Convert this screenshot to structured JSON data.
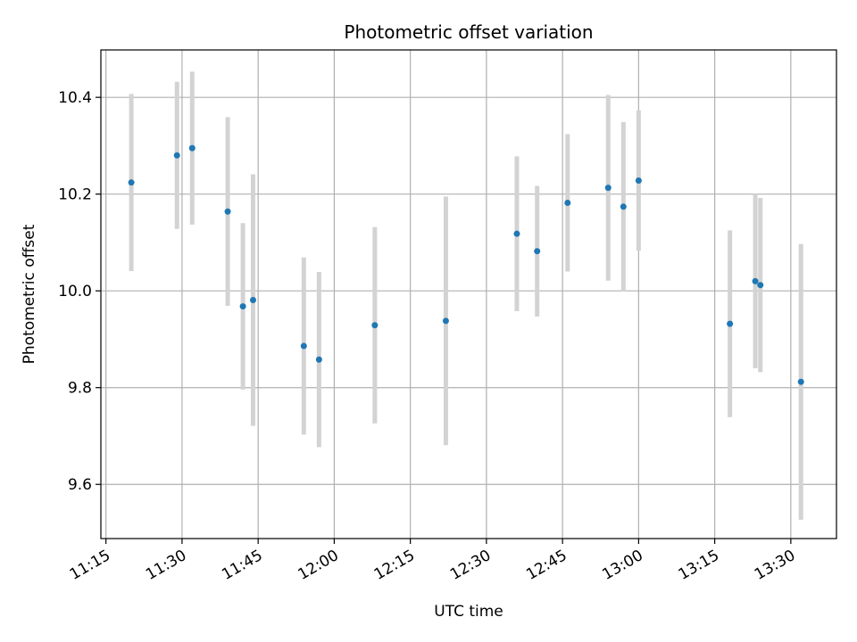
{
  "chart_data": {
    "type": "scatter",
    "title": "Photometric offset variation",
    "xlabel": "UTC time",
    "ylabel": "Photometric offset",
    "x_ticks": [
      "11:15",
      "11:30",
      "11:45",
      "12:00",
      "12:15",
      "12:30",
      "12:45",
      "13:00",
      "13:15",
      "13:30"
    ],
    "y_ticks": [
      9.6,
      9.8,
      10.0,
      10.2,
      10.4
    ],
    "xlim": [
      "11:14",
      "13:39"
    ],
    "ylim": [
      9.488,
      10.498
    ],
    "grid": true,
    "colors": {
      "point": "#1f77b4",
      "errorbar": "#d3d3d3",
      "grid": "#b0b0b0"
    },
    "points": [
      {
        "x": "11:20",
        "y": 10.224,
        "err": 0.183
      },
      {
        "x": "11:29",
        "y": 10.28,
        "err": 0.152
      },
      {
        "x": "11:32",
        "y": 10.295,
        "err": 0.158
      },
      {
        "x": "11:39",
        "y": 10.164,
        "err": 0.195
      },
      {
        "x": "11:42",
        "y": 9.968,
        "err": 0.172
      },
      {
        "x": "11:44",
        "y": 9.981,
        "err": 0.26
      },
      {
        "x": "11:54",
        "y": 9.886,
        "err": 0.183
      },
      {
        "x": "11:57",
        "y": 9.858,
        "err": 0.181
      },
      {
        "x": "12:08",
        "y": 9.929,
        "err": 0.203
      },
      {
        "x": "12:22",
        "y": 9.938,
        "err": 0.257
      },
      {
        "x": "12:36",
        "y": 10.118,
        "err": 0.16
      },
      {
        "x": "12:40",
        "y": 10.082,
        "err": 0.135
      },
      {
        "x": "12:46",
        "y": 10.182,
        "err": 0.142
      },
      {
        "x": "12:54",
        "y": 10.213,
        "err": 0.192
      },
      {
        "x": "12:57",
        "y": 10.174,
        "err": 0.175
      },
      {
        "x": "13:00",
        "y": 10.228,
        "err": 0.145
      },
      {
        "x": "13:18",
        "y": 9.932,
        "err": 0.193
      },
      {
        "x": "13:23",
        "y": 10.02,
        "err": 0.18
      },
      {
        "x": "13:24",
        "y": 10.012,
        "err": 0.18
      },
      {
        "x": "13:32",
        "y": 9.812,
        "err": 0.285
      }
    ]
  }
}
